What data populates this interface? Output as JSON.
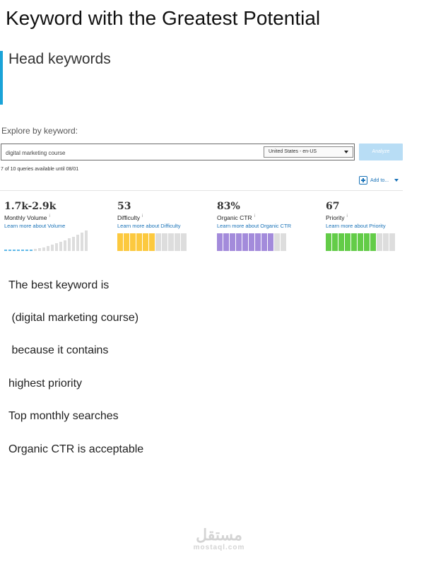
{
  "page_title": "Keyword with the Greatest Potential",
  "section_heading": "Head keywords",
  "colors": {
    "accent_bar": "#1aa3d8",
    "difficulty": "#fcc93f",
    "organic_ctr": "#a38bdb",
    "priority": "#63cc48",
    "volume": "#61b9e8",
    "empty_segment": "#dddddd",
    "link": "#1a73b8"
  },
  "explorer": {
    "label": "Explore by keyword:",
    "search_value": "digital marketing course",
    "locale": "United States - en-US",
    "analyze_label": "Analyze",
    "queries_text": "7 of 10 queries available until 08/01",
    "add_to_label": "Add to..."
  },
  "metrics": {
    "volume": {
      "value": "1.7k-2.9k",
      "label": "Monthly Volume",
      "info": "i",
      "link": "Learn more about Volume"
    },
    "difficulty": {
      "value": "53",
      "label": "Difficulty",
      "info": "i",
      "link": "Learn more about Difficulty",
      "filled": 6,
      "total": 11
    },
    "organic_ctr": {
      "value": "83%",
      "label": "Organic CTR",
      "info": "i",
      "link": "Learn more about Organic CTR",
      "filled": 9,
      "total": 11
    },
    "priority": {
      "value": "67",
      "label": "Priority",
      "info": "i",
      "link": "Learn more about Priority",
      "filled": 8,
      "total": 11
    }
  },
  "body_lines": [
    "The best keyword is",
    " (digital marketing course)",
    " because it contains",
    "highest priority",
    "Top monthly searches",
    "Organic CTR is acceptable"
  ],
  "watermark": {
    "arabic": "مستقل",
    "latin": "mostaql.com"
  }
}
